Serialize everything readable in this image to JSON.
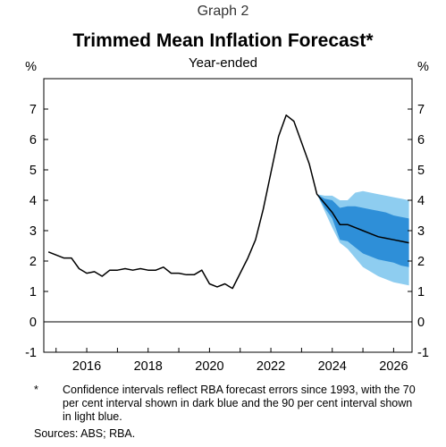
{
  "header": {
    "graph_label": "Graph 2",
    "title": "Trimmed Mean Inflation Forecast*",
    "subtitle": "Year-ended"
  },
  "footnote": {
    "marker": "*",
    "text": "Confidence intervals reflect RBA forecast errors since 1993, with the 70 per cent interval shown in dark blue and the 90 per cent interval shown in light blue."
  },
  "sources": "Sources: ABS; RBA.",
  "chart_data": {
    "type": "line",
    "title": "Trimmed Mean Inflation Forecast*",
    "subtitle": "Year-ended",
    "ylabel_left": "%",
    "ylabel_right": "%",
    "ylim": [
      -1,
      8
    ],
    "yticks": [
      -1,
      0,
      1,
      2,
      3,
      4,
      5,
      6,
      7
    ],
    "xlim": [
      2014.6,
      2026.6
    ],
    "xticks": [
      2016,
      2018,
      2020,
      2022,
      2024,
      2026
    ],
    "grid": false,
    "colors": {
      "line": "#000000",
      "interval_90": "#8ecdf0",
      "interval_70": "#2e8fd8",
      "zero_line": "#000000"
    },
    "series": [
      {
        "x": [
          2014.75,
          2015.0,
          2015.25,
          2015.5,
          2015.75,
          2016.0,
          2016.25,
          2016.5,
          2016.75,
          2017.0,
          2017.25,
          2017.5,
          2017.75,
          2018.0,
          2018.25,
          2018.5,
          2018.75,
          2019.0,
          2019.25,
          2019.5,
          2019.75,
          2020.0,
          2020.25,
          2020.5,
          2020.75,
          2021.0,
          2021.25,
          2021.5,
          2021.75,
          2022.0,
          2022.25,
          2022.5,
          2022.75,
          2023.0,
          2023.25,
          2023.5,
          2023.75,
          2024.0,
          2024.25,
          2024.5,
          2024.75,
          2025.0,
          2025.25,
          2025.5,
          2025.75,
          2026.0,
          2026.25,
          2026.5
        ],
        "values": [
          2.3,
          2.2,
          2.1,
          2.1,
          1.75,
          1.6,
          1.65,
          1.5,
          1.7,
          1.7,
          1.75,
          1.7,
          1.75,
          1.7,
          1.7,
          1.8,
          1.6,
          1.6,
          1.55,
          1.55,
          1.7,
          1.25,
          1.15,
          1.25,
          1.1,
          1.6,
          2.1,
          2.7,
          3.7,
          4.9,
          6.1,
          6.8,
          6.6,
          5.9,
          5.2,
          4.2,
          3.9,
          3.6,
          3.2,
          3.2,
          3.1,
          3.0,
          2.9,
          2.8,
          2.75,
          2.7,
          2.65,
          2.6
        ]
      }
    ],
    "intervals": [
      {
        "level": "90 per cent",
        "x": [
          2023.5,
          2023.75,
          2024.0,
          2024.25,
          2024.5,
          2024.75,
          2025.0,
          2025.25,
          2025.5,
          2025.75,
          2026.0,
          2026.25,
          2026.5
        ],
        "upper": [
          4.2,
          4.15,
          4.15,
          4.0,
          4.0,
          4.25,
          4.3,
          4.25,
          4.2,
          4.15,
          4.1,
          4.05,
          4.0
        ],
        "lower": [
          4.2,
          3.65,
          3.1,
          2.6,
          2.4,
          2.1,
          1.8,
          1.65,
          1.5,
          1.4,
          1.3,
          1.25,
          1.2
        ]
      },
      {
        "level": "70 per cent",
        "x": [
          2023.5,
          2023.75,
          2024.0,
          2024.25,
          2024.5,
          2024.75,
          2025.0,
          2025.25,
          2025.5,
          2025.75,
          2026.0,
          2026.25,
          2026.5
        ],
        "upper": [
          4.2,
          4.05,
          4.0,
          3.75,
          3.8,
          3.8,
          3.75,
          3.7,
          3.65,
          3.6,
          3.5,
          3.45,
          3.4
        ],
        "lower": [
          4.2,
          3.75,
          3.4,
          2.7,
          2.65,
          2.45,
          2.25,
          2.15,
          2.05,
          2.0,
          1.95,
          1.85,
          1.8
        ]
      }
    ]
  }
}
